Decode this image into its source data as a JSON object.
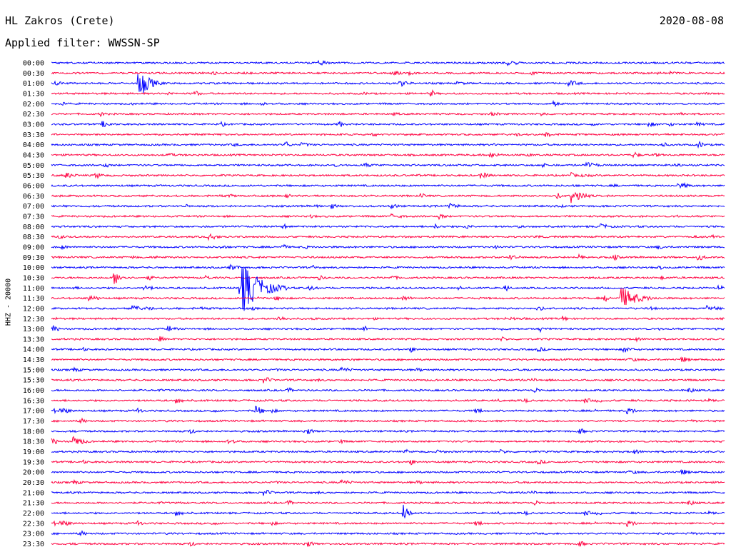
{
  "header": {
    "station": "HL Zakros (Crete)",
    "date": "2020-08-08",
    "filter": "Applied filter: WWSSN-SP"
  },
  "chart_data": {
    "type": "line",
    "title": "HL Zakros (Crete)",
    "date": "2020-08-08",
    "subtitle": "Applied filter: WWSSN-SP",
    "ylabel": "HHZ - 20000",
    "row_labels": [
      "00:00",
      "00:30",
      "01:00",
      "01:30",
      "02:00",
      "02:30",
      "03:00",
      "03:30",
      "04:00",
      "04:30",
      "05:00",
      "05:30",
      "06:00",
      "06:30",
      "07:00",
      "07:30",
      "08:00",
      "08:30",
      "09:00",
      "09:30",
      "10:00",
      "10:30",
      "11:00",
      "11:30",
      "12:00",
      "12:30",
      "13:00",
      "13:30",
      "14:00",
      "14:30",
      "15:00",
      "15:30",
      "16:00",
      "16:30",
      "17:00",
      "17:30",
      "18:00",
      "18:30",
      "19:00",
      "19:30",
      "20:00",
      "20:30",
      "21:00",
      "21:30",
      "22:00",
      "22:30",
      "23:00",
      "23:30"
    ],
    "row_duration_minutes": 30,
    "colors": {
      "even_rows": "#0000ff",
      "odd_rows": "#ff0040"
    },
    "events": [
      {
        "row": 2,
        "minute": 3.9,
        "amplitude": 24,
        "length_min": 1.2
      },
      {
        "row": 13,
        "minute": 23.2,
        "amplitude": 12,
        "length_min": 1.3
      },
      {
        "row": 21,
        "minute": 2.8,
        "amplitude": 10,
        "length_min": 1.0
      },
      {
        "row": 22,
        "minute": 8.4,
        "amplitude": 42,
        "length_min": 2.2
      },
      {
        "row": 23,
        "minute": 25.4,
        "amplitude": 16,
        "length_min": 2.0
      },
      {
        "row": 34,
        "minute": 9.1,
        "amplitude": 9,
        "length_min": 0.8
      },
      {
        "row": 37,
        "minute": 1.0,
        "amplitude": 8,
        "length_min": 1.2
      },
      {
        "row": 44,
        "minute": 15.7,
        "amplitude": 12,
        "length_min": 0.6
      }
    ]
  }
}
